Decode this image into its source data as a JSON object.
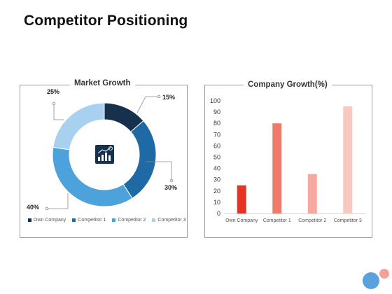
{
  "page": {
    "title": "Competitor Positioning"
  },
  "chart_data": [
    {
      "type": "pie",
      "variant": "donut",
      "title": "Market Growth",
      "slices": [
        {
          "name": "Own Company",
          "value": 15,
          "label": "15%",
          "color": "#15314e"
        },
        {
          "name": "Competitor 1",
          "value": 30,
          "label": "30%",
          "color": "#1f6aa5"
        },
        {
          "name": "Competitor 2",
          "value": 40,
          "label": "40%",
          "color": "#4ea2dc"
        },
        {
          "name": "Competitor 3",
          "value": 25,
          "label": "25%",
          "color": "#a7d1ee"
        }
      ],
      "legend": "bottom",
      "center_icon": "growth-chart-icon"
    },
    {
      "type": "bar",
      "title": "Company Growth(%)",
      "categories": [
        "Own Company",
        "Competitor 1",
        "Competitor 2",
        "Competitor 3"
      ],
      "values": [
        25,
        80,
        35,
        95
      ],
      "colors": [
        "#e63322",
        "#f0796a",
        "#f6a99f",
        "#f9c8c0"
      ],
      "ylim": [
        0,
        100
      ],
      "yticks": [
        0,
        10,
        20,
        30,
        40,
        50,
        60,
        70,
        80,
        90,
        100
      ],
      "grid": false
    }
  ],
  "decor": {
    "dot_colors": [
      "#5aa2de",
      "#f5a09a"
    ]
  }
}
